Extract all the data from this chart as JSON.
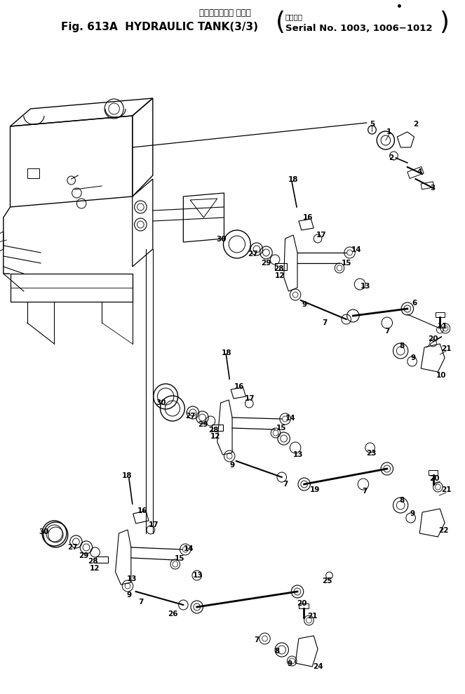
{
  "title_jp": "ハイドロリック タンク",
  "title_en": "Fig. 613A  HYDRAULIC TANK(3/3)",
  "serial_jp": "適用号機",
  "serial_en": "Serial No. 1003, 1006−1012",
  "bg_color": "#ffffff",
  "fig_width": 6.63,
  "fig_height": 9.89,
  "dpi": 100
}
